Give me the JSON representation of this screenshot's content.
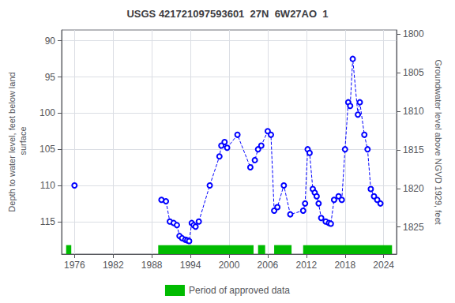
{
  "chart_data": {
    "type": "line",
    "title": "USGS 421721097593601  27N  6W27AO  1",
    "ylabel": "Depth to water level, feet below land\n surface",
    "y2label": "Groundwater level above NGVD 1929, feet",
    "xlim": [
      1974,
      2026
    ],
    "xticks": [
      1976,
      1982,
      1988,
      1994,
      2000,
      2006,
      2012,
      2018,
      2024
    ],
    "ylim": [
      119.5,
      88.5
    ],
    "yticks": [
      90,
      95,
      100,
      105,
      110,
      115
    ],
    "y2lim": [
      1828.5,
      1799.5
    ],
    "y2ticks": [
      1800,
      1805,
      1810,
      1815,
      1820,
      1825
    ],
    "grid": true,
    "legend": "bottom",
    "series": [
      {
        "color": "#0000ff",
        "line_style": "dashed",
        "marker": "emptyCircle",
        "x": [
          1976.0
        ],
        "values": [
          110.0
        ]
      },
      {
        "color": "#0000ff",
        "line_style": "dashed",
        "marker": "emptyCircle",
        "x": [
          1989.5,
          1990.2,
          1990.8,
          1991.4,
          1991.9,
          1992.3,
          1992.7,
          1993.2,
          1993.5,
          1993.8,
          1994.2,
          1994.5,
          1994.8,
          1995.3,
          1997.0,
          1998.5,
          1998.8,
          1999.3,
          1999.7,
          2001.3,
          2003.3,
          2004.0,
          2004.5,
          2005.0,
          2006.0,
          2006.5,
          2007.0,
          2007.5,
          2008.5,
          2009.5,
          2011.5,
          2011.8,
          2012.2,
          2012.5,
          2013.0,
          2013.3,
          2013.6,
          2013.9,
          2014.3,
          2015.0,
          2015.5,
          2015.8,
          2016.3,
          2017.0,
          2017.5,
          2018.0,
          2018.5,
          2018.8,
          2019.2,
          2020.0,
          2020.3,
          2021.0,
          2021.5,
          2022.0,
          2022.5,
          2023.0,
          2023.5
        ],
        "values": [
          112.0,
          112.2,
          115.0,
          115.2,
          115.5,
          117.0,
          117.3,
          117.5,
          117.6,
          117.7,
          115.2,
          115.5,
          115.7,
          115.0,
          110.0,
          106.0,
          104.5,
          104.0,
          104.8,
          103.0,
          107.5,
          106.5,
          105.0,
          104.5,
          102.5,
          103.0,
          113.5,
          113.0,
          110.0,
          114.0,
          113.5,
          112.5,
          105.0,
          105.5,
          110.5,
          111.0,
          111.5,
          112.5,
          114.5,
          115.0,
          115.2,
          115.3,
          112.0,
          111.5,
          112.0,
          105.0,
          98.5,
          99.0,
          92.5,
          100.2,
          98.5,
          103.0,
          105.0,
          110.5,
          111.5,
          112.0,
          112.5
        ]
      },
      {
        "name": "Period of approved data",
        "type": "span",
        "color": "#00bb00",
        "ranges": [
          [
            1974.7,
            1975.5
          ],
          [
            1989.0,
            2003.8
          ],
          [
            2004.5,
            2005.6
          ],
          [
            2007.0,
            2009.7
          ],
          [
            2011.5,
            2025.3
          ]
        ]
      }
    ]
  }
}
